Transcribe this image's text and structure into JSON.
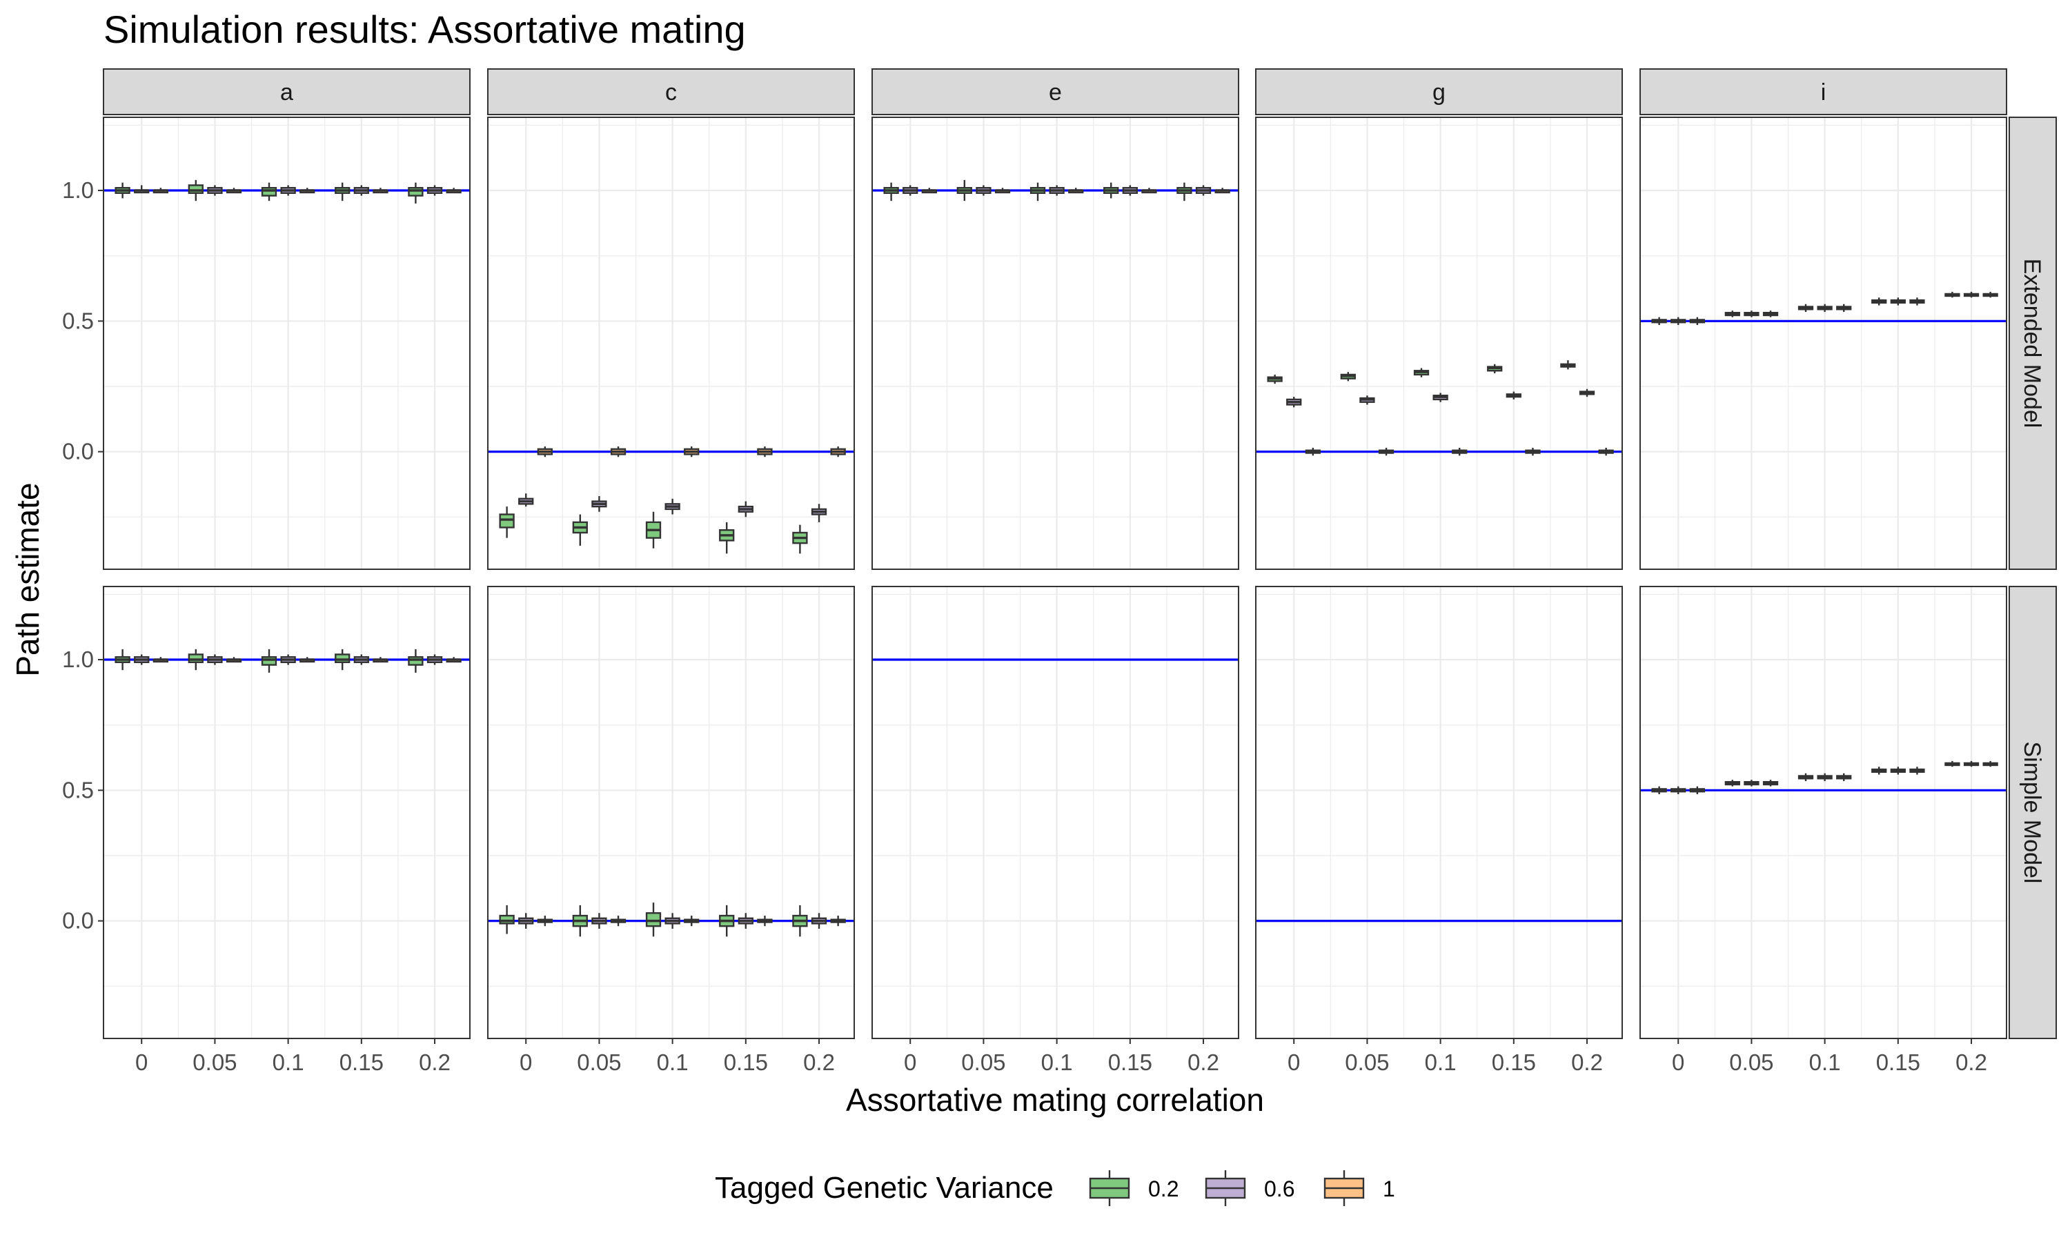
{
  "chart_data": {
    "type": "boxplot",
    "title": "Simulation results: Assortative mating",
    "xlabel": "Assortative mating correlation",
    "ylabel": "Path estimate",
    "categories": [
      "0",
      "0.05",
      "0.1",
      "0.15",
      "0.2"
    ],
    "y_ticks": [
      "0.0",
      "0.5",
      "1.0"
    ],
    "ylim": [
      -0.45,
      1.28
    ],
    "grid": true,
    "columns": [
      "a",
      "c",
      "e",
      "g",
      "i"
    ],
    "rows": [
      "Extended Model",
      "Simple Model"
    ],
    "legend": {
      "title": "Tagged Genetic Variance",
      "position": "bottom",
      "items": [
        {
          "label": "0.2",
          "color": "#7fc97f"
        },
        {
          "label": "0.6",
          "color": "#beaed4"
        },
        {
          "label": "1",
          "color": "#fdc086"
        }
      ]
    },
    "colors": {
      "reference_line": "#0000ff",
      "box_outline": "#333333",
      "strip": "#d9d9d9"
    },
    "panels": [
      {
        "row": "Extended Model",
        "col": "a",
        "reference": 1.0,
        "series": {
          "0.2": [
            [
              0.97,
              0.99,
              1.0,
              1.01,
              1.03
            ],
            [
              0.96,
              0.99,
              1.0,
              1.02,
              1.04
            ],
            [
              0.96,
              0.98,
              1.0,
              1.01,
              1.03
            ],
            [
              0.96,
              0.99,
              1.0,
              1.01,
              1.03
            ],
            [
              0.95,
              0.98,
              1.0,
              1.01,
              1.03
            ]
          ],
          "0.6": [
            [
              0.99,
              1.0,
              1.0,
              1.0,
              1.02
            ],
            [
              0.98,
              0.99,
              1.0,
              1.01,
              1.02
            ],
            [
              0.98,
              0.99,
              1.0,
              1.01,
              1.02
            ],
            [
              0.98,
              0.99,
              1.0,
              1.01,
              1.02
            ],
            [
              0.98,
              0.99,
              1.0,
              1.01,
              1.02
            ]
          ],
          "1": [
            [
              0.99,
              1.0,
              1.0,
              1.0,
              1.01
            ],
            [
              0.99,
              1.0,
              1.0,
              1.0,
              1.01
            ],
            [
              0.99,
              1.0,
              1.0,
              1.0,
              1.01
            ],
            [
              0.99,
              1.0,
              1.0,
              1.0,
              1.01
            ],
            [
              0.99,
              1.0,
              1.0,
              1.0,
              1.01
            ]
          ]
        }
      },
      {
        "row": "Extended Model",
        "col": "c",
        "reference": 0.0,
        "series": {
          "0.2": [
            [
              -0.33,
              -0.29,
              -0.26,
              -0.24,
              -0.21
            ],
            [
              -0.36,
              -0.31,
              -0.29,
              -0.27,
              -0.24
            ],
            [
              -0.37,
              -0.33,
              -0.3,
              -0.27,
              -0.23
            ],
            [
              -0.39,
              -0.34,
              -0.32,
              -0.3,
              -0.27
            ],
            [
              -0.39,
              -0.35,
              -0.33,
              -0.31,
              -0.28
            ]
          ],
          "0.6": [
            [
              -0.21,
              -0.2,
              -0.19,
              -0.18,
              -0.16
            ],
            [
              -0.23,
              -0.21,
              -0.2,
              -0.19,
              -0.17
            ],
            [
              -0.24,
              -0.22,
              -0.21,
              -0.2,
              -0.18
            ],
            [
              -0.25,
              -0.23,
              -0.22,
              -0.21,
              -0.19
            ],
            [
              -0.27,
              -0.24,
              -0.23,
              -0.22,
              -0.2
            ]
          ],
          "1": [
            [
              -0.02,
              -0.01,
              0.0,
              0.01,
              0.02
            ],
            [
              -0.02,
              -0.01,
              0.0,
              0.01,
              0.02
            ],
            [
              -0.02,
              -0.01,
              0.0,
              0.01,
              0.02
            ],
            [
              -0.02,
              -0.01,
              0.0,
              0.01,
              0.02
            ],
            [
              -0.02,
              -0.01,
              0.0,
              0.01,
              0.02
            ]
          ]
        }
      },
      {
        "row": "Extended Model",
        "col": "e",
        "reference": 1.0,
        "series": {
          "0.2": [
            [
              0.96,
              0.99,
              1.0,
              1.01,
              1.03
            ],
            [
              0.96,
              0.99,
              1.0,
              1.01,
              1.04
            ],
            [
              0.96,
              0.99,
              1.0,
              1.01,
              1.03
            ],
            [
              0.97,
              0.99,
              1.0,
              1.01,
              1.03
            ],
            [
              0.96,
              0.99,
              1.0,
              1.01,
              1.03
            ]
          ],
          "0.6": [
            [
              0.98,
              0.99,
              1.0,
              1.01,
              1.02
            ],
            [
              0.98,
              0.99,
              1.0,
              1.01,
              1.02
            ],
            [
              0.98,
              0.99,
              1.0,
              1.01,
              1.02
            ],
            [
              0.98,
              0.99,
              1.0,
              1.01,
              1.02
            ],
            [
              0.98,
              0.99,
              1.0,
              1.01,
              1.02
            ]
          ],
          "1": [
            [
              0.99,
              1.0,
              1.0,
              1.0,
              1.01
            ],
            [
              0.99,
              1.0,
              1.0,
              1.0,
              1.01
            ],
            [
              0.99,
              1.0,
              1.0,
              1.0,
              1.01
            ],
            [
              0.99,
              1.0,
              1.0,
              1.0,
              1.01
            ],
            [
              0.99,
              1.0,
              1.0,
              1.0,
              1.01
            ]
          ]
        }
      },
      {
        "row": "Extended Model",
        "col": "g",
        "reference": 0.0,
        "series": {
          "0.2": [
            [
              0.26,
              0.27,
              0.28,
              0.285,
              0.295
            ],
            [
              0.27,
              0.28,
              0.29,
              0.295,
              0.305
            ],
            [
              0.285,
              0.295,
              0.305,
              0.31,
              0.32
            ],
            [
              0.3,
              0.31,
              0.32,
              0.325,
              0.335
            ],
            [
              0.315,
              0.325,
              0.33,
              0.335,
              0.35
            ]
          ],
          "0.6": [
            [
              0.17,
              0.18,
              0.19,
              0.2,
              0.21
            ],
            [
              0.18,
              0.19,
              0.2,
              0.205,
              0.215
            ],
            [
              0.19,
              0.2,
              0.21,
              0.215,
              0.225
            ],
            [
              0.2,
              0.21,
              0.215,
              0.22,
              0.23
            ],
            [
              0.21,
              0.22,
              0.225,
              0.23,
              0.24
            ]
          ],
          "1": [
            [
              -0.015,
              -0.005,
              0.0,
              0.005,
              0.015
            ],
            [
              -0.015,
              -0.005,
              0.0,
              0.005,
              0.015
            ],
            [
              -0.015,
              -0.005,
              0.0,
              0.005,
              0.015
            ],
            [
              -0.015,
              -0.005,
              0.0,
              0.005,
              0.015
            ],
            [
              -0.015,
              -0.005,
              0.0,
              0.005,
              0.015
            ]
          ]
        }
      },
      {
        "row": "Extended Model",
        "col": "i",
        "reference": 0.5,
        "series": {
          "0.2": [
            [
              0.485,
              0.495,
              0.5,
              0.505,
              0.515
            ],
            [
              0.515,
              0.522,
              0.527,
              0.532,
              0.54
            ],
            [
              0.535,
              0.545,
              0.55,
              0.555,
              0.565
            ],
            [
              0.56,
              0.57,
              0.575,
              0.58,
              0.59
            ],
            [
              0.59,
              0.596,
              0.6,
              0.604,
              0.612
            ]
          ],
          "0.6": [
            [
              0.485,
              0.495,
              0.5,
              0.505,
              0.515
            ],
            [
              0.515,
              0.522,
              0.527,
              0.532,
              0.54
            ],
            [
              0.535,
              0.545,
              0.55,
              0.555,
              0.565
            ],
            [
              0.56,
              0.57,
              0.575,
              0.58,
              0.59
            ],
            [
              0.59,
              0.596,
              0.6,
              0.604,
              0.612
            ]
          ],
          "1": [
            [
              0.485,
              0.495,
              0.5,
              0.505,
              0.515
            ],
            [
              0.515,
              0.522,
              0.527,
              0.532,
              0.54
            ],
            [
              0.535,
              0.545,
              0.55,
              0.555,
              0.565
            ],
            [
              0.56,
              0.57,
              0.575,
              0.58,
              0.59
            ],
            [
              0.59,
              0.596,
              0.6,
              0.604,
              0.612
            ]
          ]
        }
      },
      {
        "row": "Simple Model",
        "col": "a",
        "reference": 1.0,
        "series": {
          "0.2": [
            [
              0.96,
              0.99,
              1.0,
              1.01,
              1.04
            ],
            [
              0.96,
              0.99,
              1.0,
              1.02,
              1.04
            ],
            [
              0.95,
              0.98,
              1.0,
              1.01,
              1.04
            ],
            [
              0.96,
              0.99,
              1.0,
              1.02,
              1.04
            ],
            [
              0.95,
              0.98,
              1.0,
              1.01,
              1.04
            ]
          ],
          "0.6": [
            [
              0.98,
              0.99,
              1.0,
              1.01,
              1.02
            ],
            [
              0.98,
              0.99,
              1.0,
              1.01,
              1.02
            ],
            [
              0.98,
              0.99,
              1.0,
              1.01,
              1.02
            ],
            [
              0.98,
              0.99,
              1.0,
              1.01,
              1.02
            ],
            [
              0.98,
              0.99,
              1.0,
              1.01,
              1.02
            ]
          ],
          "1": [
            [
              0.99,
              1.0,
              1.0,
              1.0,
              1.01
            ],
            [
              0.99,
              1.0,
              1.0,
              1.0,
              1.01
            ],
            [
              0.99,
              1.0,
              1.0,
              1.0,
              1.01
            ],
            [
              0.99,
              1.0,
              1.0,
              1.0,
              1.01
            ],
            [
              0.99,
              1.0,
              1.0,
              1.0,
              1.01
            ]
          ]
        }
      },
      {
        "row": "Simple Model",
        "col": "c",
        "reference": 0.0,
        "series": {
          "0.2": [
            [
              -0.05,
              -0.01,
              0.0,
              0.02,
              0.06
            ],
            [
              -0.06,
              -0.02,
              0.0,
              0.02,
              0.06
            ],
            [
              -0.06,
              -0.02,
              0.0,
              0.03,
              0.07
            ],
            [
              -0.06,
              -0.02,
              0.0,
              0.02,
              0.06
            ],
            [
              -0.06,
              -0.02,
              0.0,
              0.02,
              0.06
            ]
          ],
          "0.6": [
            [
              -0.03,
              -0.01,
              0.0,
              0.01,
              0.03
            ],
            [
              -0.03,
              -0.01,
              0.0,
              0.01,
              0.03
            ],
            [
              -0.03,
              -0.01,
              0.0,
              0.01,
              0.03
            ],
            [
              -0.03,
              -0.01,
              0.0,
              0.01,
              0.03
            ],
            [
              -0.03,
              -0.01,
              0.0,
              0.01,
              0.03
            ]
          ],
          "1": [
            [
              -0.02,
              -0.005,
              0.0,
              0.005,
              0.02
            ],
            [
              -0.02,
              -0.005,
              0.0,
              0.005,
              0.02
            ],
            [
              -0.02,
              -0.005,
              0.0,
              0.005,
              0.02
            ],
            [
              -0.02,
              -0.005,
              0.0,
              0.005,
              0.02
            ],
            [
              -0.02,
              -0.005,
              0.0,
              0.005,
              0.02
            ]
          ]
        }
      },
      {
        "row": "Simple Model",
        "col": "e",
        "reference": 1.0,
        "series": {}
      },
      {
        "row": "Simple Model",
        "col": "g",
        "reference": 0.0,
        "series": {}
      },
      {
        "row": "Simple Model",
        "col": "i",
        "reference": 0.5,
        "series": {
          "0.2": [
            [
              0.485,
              0.495,
              0.5,
              0.505,
              0.515
            ],
            [
              0.515,
              0.522,
              0.527,
              0.532,
              0.54
            ],
            [
              0.535,
              0.545,
              0.55,
              0.555,
              0.565
            ],
            [
              0.56,
              0.57,
              0.575,
              0.58,
              0.59
            ],
            [
              0.59,
              0.596,
              0.6,
              0.604,
              0.612
            ]
          ],
          "0.6": [
            [
              0.485,
              0.495,
              0.5,
              0.505,
              0.515
            ],
            [
              0.515,
              0.522,
              0.527,
              0.532,
              0.54
            ],
            [
              0.535,
              0.545,
              0.55,
              0.555,
              0.565
            ],
            [
              0.56,
              0.57,
              0.575,
              0.58,
              0.59
            ],
            [
              0.59,
              0.596,
              0.6,
              0.604,
              0.612
            ]
          ],
          "1": [
            [
              0.485,
              0.495,
              0.5,
              0.505,
              0.515
            ],
            [
              0.515,
              0.522,
              0.527,
              0.532,
              0.54
            ],
            [
              0.535,
              0.545,
              0.55,
              0.555,
              0.565
            ],
            [
              0.56,
              0.57,
              0.575,
              0.58,
              0.59
            ],
            [
              0.59,
              0.596,
              0.6,
              0.604,
              0.612
            ]
          ]
        }
      }
    ]
  }
}
